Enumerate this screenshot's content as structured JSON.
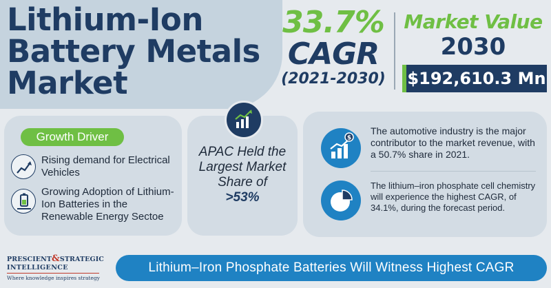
{
  "title": {
    "line1": "Lithium-Ion",
    "line2": "Battery Metals",
    "line3": "Market"
  },
  "cagr": {
    "percent": "33.7%",
    "label": "CAGR",
    "period": "(2021-2030)"
  },
  "market_value": {
    "label": "Market Value",
    "year": "2030",
    "value": "$192,610.3 Mn"
  },
  "growth_driver": {
    "badge": "Growth Driver",
    "items": [
      {
        "text": "Rising demand for Electrical Vehicles",
        "icon": "trend-up-icon"
      },
      {
        "text": "Growing Adoption of Lithium-Ion Batteries in the Renewable Energy Sectoe",
        "icon": "battery-solar-icon"
      }
    ]
  },
  "apac": {
    "icon": "bar-chart-growth-icon",
    "text": "APAC Held the Largest Market Share of",
    "share": ">53%"
  },
  "insights": [
    {
      "icon": "money-growth-icon",
      "text": "The automotive industry is the major contributor to the market revenue, with a 50.7% share in 2021."
    },
    {
      "icon": "pie-chart-icon",
      "text": "The lithium–iron phosphate cell chemistry will experience the highest CAGR, of 34.1%, during the forecast period."
    }
  ],
  "logo": {
    "line1a": "PRESCIENT",
    "amp": "&",
    "line1b": "STRATEGIC",
    "line2": "INTELLIGENCE",
    "tagline": "Where knowledge inspires strategy"
  },
  "banner": "Lithium–Iron Phosphate Batteries Will Witness Highest CAGR",
  "colors": {
    "navy": "#1f3c63",
    "green": "#6fbf44",
    "blue": "#1f82c3",
    "panel": "#d3dce4",
    "background": "#e6eaee"
  }
}
